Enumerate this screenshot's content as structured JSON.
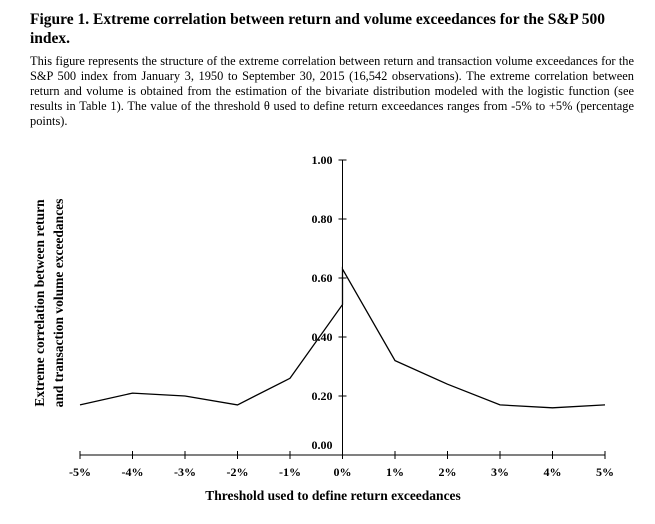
{
  "figure": {
    "title_line1": "Figure 1. Extreme correlation between return and volume exceedances for the S&P 500",
    "title_line2": "index.",
    "caption": "This figure represents the structure of the extreme correlation between return and transaction volume exceedances for the S&P 500 index from January 3, 1950 to September 30, 2015 (16,542 observations). The extreme correlation between return and volume is obtained from the estimation of the bivariate distribution modeled with the logistic function (see results in Table 1). The value of the threshold θ used to define return exceedances ranges from -5% to +5% (percentage points)."
  },
  "chart_data": {
    "type": "line",
    "xlabel": "Threshold used to define return exceedances",
    "ylabel_line1": "Extreme correlation between return",
    "ylabel_line2": "and transaction volume exceedances",
    "x": [
      -5,
      -4,
      -3,
      -2,
      -1,
      0,
      0,
      1,
      2,
      3,
      4,
      5
    ],
    "y": [
      0.17,
      0.21,
      0.2,
      0.17,
      0.26,
      0.51,
      0.63,
      0.32,
      0.24,
      0.17,
      0.16,
      0.17
    ],
    "xlim": [
      -5,
      5
    ],
    "ylim": [
      0,
      1
    ],
    "x_tick_values": [
      -5,
      -4,
      -3,
      -2,
      -1,
      0,
      1,
      2,
      3,
      4,
      5
    ],
    "x_tick_labels": [
      "-5%",
      "-4%",
      "-3%",
      "-2%",
      "-1%",
      "0%",
      "1%",
      "2%",
      "3%",
      "4%",
      "5%"
    ],
    "y_tick_values": [
      0,
      0.2,
      0.4,
      0.6,
      0.8,
      1.0
    ],
    "y_tick_labels": [
      "0.00",
      "0.20",
      "0.40",
      "0.60",
      "0.80",
      "1.00"
    ],
    "grid": false,
    "legend": "none",
    "line_color": "#000000"
  }
}
